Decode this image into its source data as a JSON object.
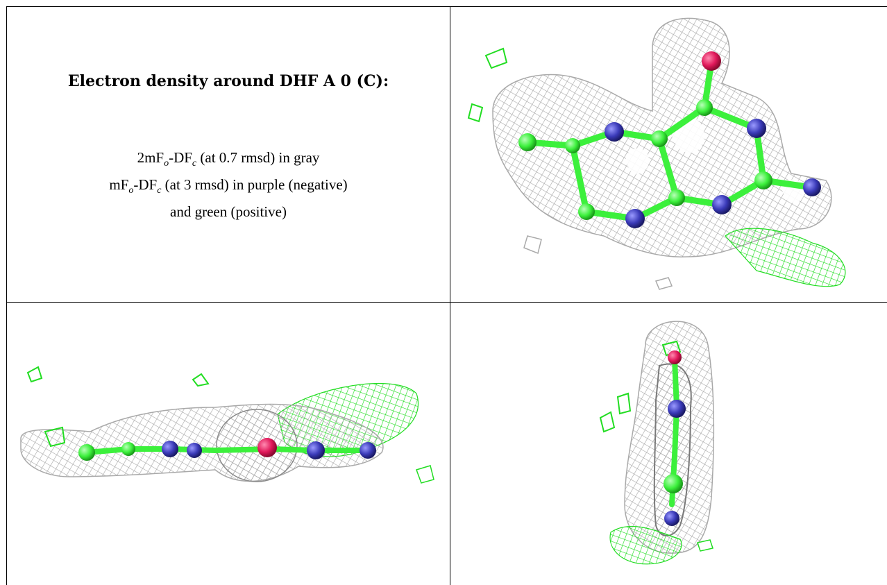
{
  "title": "Electron density around DHF A 0 (C):",
  "legend": {
    "line1_prefix": "2mF",
    "line1_sub1": "o",
    "line1_mid": "-DF",
    "line1_sub2": "c",
    "line1_suffix": " (at 0.7 rmsd) in gray",
    "line2_prefix": "mF",
    "line2_sub1": "o",
    "line2_mid": "-DF",
    "line2_sub2": "c",
    "line2_suffix": " (at 3 rmsd) in purple (negative)",
    "line3": "and green (positive)"
  },
  "colors": {
    "mesh_gray": "#a9a9a9",
    "carbon_green": "#3cf03c",
    "nitrogen_blue": "#3a3ab8",
    "oxygen_red": "#e0185a",
    "diff_green": "#22dd22"
  }
}
